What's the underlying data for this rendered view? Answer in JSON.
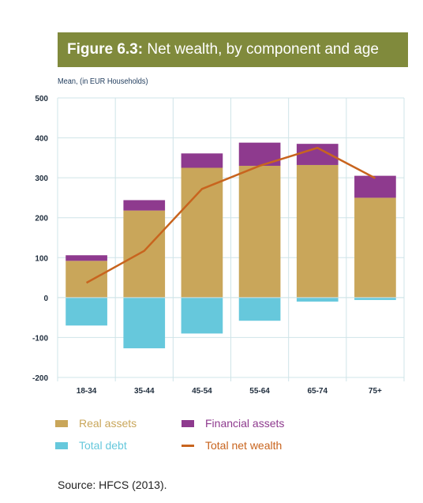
{
  "figure": {
    "label": "Figure 6.3:",
    "title": "Net wealth, by component and age",
    "unit_note": "Mean, (in EUR Households)",
    "source": "Source: HFCS (2013)."
  },
  "colors": {
    "header_bg": "#808a3c",
    "real_assets": "#c9a65a",
    "financial_assets": "#8e3a8e",
    "total_debt": "#66c8dc",
    "total_net_wealth": "#c8641e",
    "grid": "#cfe4e8"
  },
  "chart_data": {
    "type": "bar",
    "categories": [
      "18-34",
      "35-44",
      "45-54",
      "55-64",
      "65-74",
      "75+"
    ],
    "series": [
      {
        "name": "Real assets",
        "kind": "bar",
        "values": [
          92,
          218,
          325,
          330,
          332,
          250
        ]
      },
      {
        "name": "Financial assets",
        "kind": "bar",
        "values": [
          14,
          26,
          36,
          58,
          53,
          55
        ]
      },
      {
        "name": "Total debt",
        "kind": "bar",
        "values": [
          -70,
          -127,
          -90,
          -58,
          -10,
          -6
        ]
      },
      {
        "name": "Total net wealth",
        "kind": "line",
        "values": [
          37,
          117,
          272,
          330,
          375,
          299
        ]
      }
    ],
    "ylim": [
      -200,
      500
    ],
    "yticks": [
      500,
      400,
      300,
      200,
      100,
      0,
      -100,
      -200
    ],
    "stacked": true,
    "grid": true,
    "legend_position": "bottom"
  }
}
